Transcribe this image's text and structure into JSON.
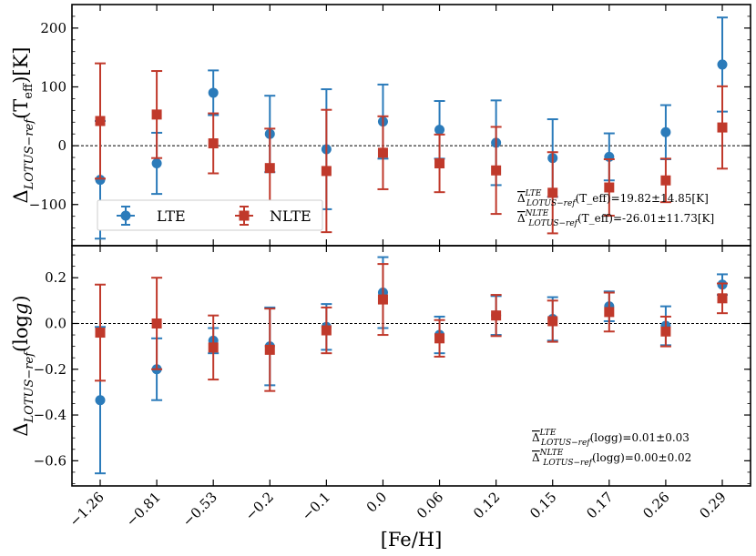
{
  "chart_data": [
    {
      "type": "scatter",
      "panel": "top",
      "ylabel": "Δ_{LOTUS−ref}(T_eff)[K]",
      "ylim": [
        -170,
        240
      ],
      "yticks": [
        -100,
        0,
        100,
        200
      ],
      "categories": [
        "-1.26",
        "-0.81",
        "-0.53",
        "-0.2",
        "-0.1",
        "0.0",
        "0.06",
        "0.12",
        "0.15",
        "0.17",
        "0.26",
        "0.29"
      ],
      "series": [
        {
          "name": "LTE",
          "color": "#2b7bba",
          "marker": "circle",
          "values": [
            -58,
            -30,
            90,
            20,
            -6,
            41,
            27,
            5,
            -21,
            -19,
            23,
            138
          ],
          "errors": [
            100,
            52,
            38,
            65,
            102,
            63,
            49,
            72,
            66,
            40,
            46,
            80
          ]
        },
        {
          "name": "NLTE",
          "color": "#c0392b",
          "marker": "square",
          "values": [
            42,
            53,
            4,
            -38,
            -43,
            -12,
            -30,
            -42,
            -80,
            -71,
            -59,
            31
          ],
          "errors": [
            98,
            74,
            51,
            67,
            104,
            62,
            49,
            74,
            69,
            48,
            37,
            70
          ]
        }
      ],
      "zero_line": true,
      "legend": {
        "placement": "lower-left",
        "entries": [
          "LTE",
          "NLTE"
        ]
      },
      "annotations": [
        {
          "bar": "Δ̅",
          "sup": "LTE",
          "sub": "LOTUS−ref",
          "text": "(T_eff)=19.82±14.85[K]"
        },
        {
          "bar": "Δ̅",
          "sup": "NLTE",
          "sub": "LOTUS−ref",
          "text": "(T_eff)=-26.01±11.73[K]"
        }
      ]
    },
    {
      "type": "scatter",
      "panel": "bottom",
      "ylabel": "Δ_{LOTUS−ref}(log g)",
      "xlabel": "[Fe/H]",
      "ylim": [
        -0.71,
        0.34
      ],
      "yticks": [
        -0.6,
        -0.4,
        -0.2,
        0.0,
        0.2
      ],
      "categories": [
        "-1.26",
        "-0.81",
        "-0.53",
        "-0.2",
        "-0.1",
        "0.0",
        "0.06",
        "0.12",
        "0.15",
        "0.17",
        "0.26",
        "0.29"
      ],
      "series": [
        {
          "name": "LTE",
          "color": "#2b7bba",
          "marker": "circle",
          "values": [
            -0.335,
            -0.2,
            -0.075,
            -0.1,
            -0.015,
            0.135,
            -0.05,
            0.035,
            0.02,
            0.075,
            -0.01,
            0.17
          ],
          "errors": [
            0.32,
            0.135,
            0.055,
            0.17,
            0.1,
            0.155,
            0.08,
            0.085,
            0.095,
            0.065,
            0.085,
            0.045
          ]
        },
        {
          "name": "NLTE",
          "color": "#c0392b",
          "marker": "square",
          "values": [
            -0.04,
            0.0,
            -0.105,
            -0.115,
            -0.03,
            0.105,
            -0.065,
            0.035,
            0.01,
            0.05,
            -0.035,
            0.11
          ],
          "errors": [
            0.21,
            0.2,
            0.14,
            0.18,
            0.1,
            0.155,
            0.08,
            0.09,
            0.09,
            0.085,
            0.065,
            0.065
          ]
        }
      ],
      "zero_line": true,
      "annotations": [
        {
          "bar": "Δ̅",
          "sup": "LTE",
          "sub": "LOTUS−ref",
          "text": "(logg)=0.01±0.03"
        },
        {
          "bar": "Δ̅",
          "sup": "NLTE",
          "sub": "LOTUS−ref",
          "text": "(logg)=0.00±0.02"
        }
      ]
    }
  ]
}
